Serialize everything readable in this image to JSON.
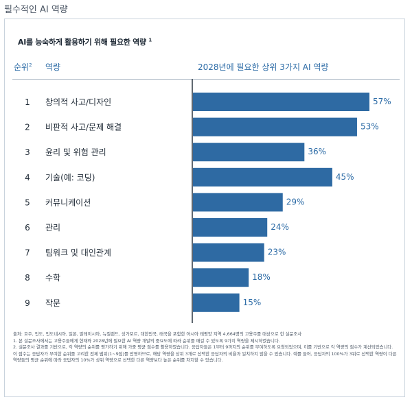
{
  "page": {
    "title": "필수적인 AI 역량"
  },
  "chart_data": {
    "type": "bar",
    "orientation": "horizontal",
    "title": "AI를 능숙하게 활용하기 위해 필요한 역량",
    "title_note": "1",
    "columns": {
      "rank": "순위",
      "rank_note": "2",
      "skill": "역량",
      "value": "2028년에 필요한 상위 3가지 AI 역량"
    },
    "categories": [
      "창의적 사고/디자인",
      "비판적 사고/문제 해결",
      "윤리 및 위험 관리",
      "기술(예: 코딩)",
      "커뮤니케이션",
      "관리",
      "팀워크 및 대인관계",
      "수학",
      "작문"
    ],
    "ranks": [
      "1",
      "2",
      "3",
      "4",
      "5",
      "6",
      "7",
      "8",
      "9"
    ],
    "values": [
      57,
      53,
      36,
      45,
      29,
      24,
      23,
      18,
      15
    ],
    "value_labels": [
      "57%",
      "53%",
      "36%",
      "45%",
      "29%",
      "24%",
      "23%",
      "18%",
      "15%"
    ],
    "xlim": [
      0,
      60
    ],
    "unit": "%",
    "bar_color": "#2e6aa3",
    "label_color": "#2c6ba6",
    "grid": false,
    "legend": "none"
  },
  "footnotes": {
    "source": "출처: 호주, 인도, 인도네시아, 일본, 말레이시아, 뉴질랜드, 싱가포르, 대한민국, 태국을 포함한 아시아 태평양 지역 4,664명의 고용주를 대상으로 한 설문조사",
    "note1": "1. 본 설문조사에서는 고용주들에게 현재와 2028년에 필요한 AI 역량 개발의 중요도에 따라 순위를 매길 수 있도록 9가지 역량을 제시하였습니다.",
    "note2": "2. 설문조사 결과를 기반으로, 각 역량의 순위를 평가하기 위해 가중 평균 점수를 활용하였습니다. 응답자들은 1부터 9까지의 순위를 부여하도록 요청되었으며, 이를 기반으로 각 역량의 점수가 계산되었습니다. 이 점수는 응답자가 부여한 순위를 고려한 전체 범위(1~9점)를 반영하므로, 해당 역량을 상위 3개로 선택한 응답자의 비율과 일치하지 않을 수 있습니다. 예를 들어, 응답자의 100%가 3위로 선택한 역량이 다른 역량들의 평균 순위에 따라 응답자의 10%가 상위 역량으로 선택한 다른 역량보다 높은 순위를 차지할 수 있습니다."
  }
}
